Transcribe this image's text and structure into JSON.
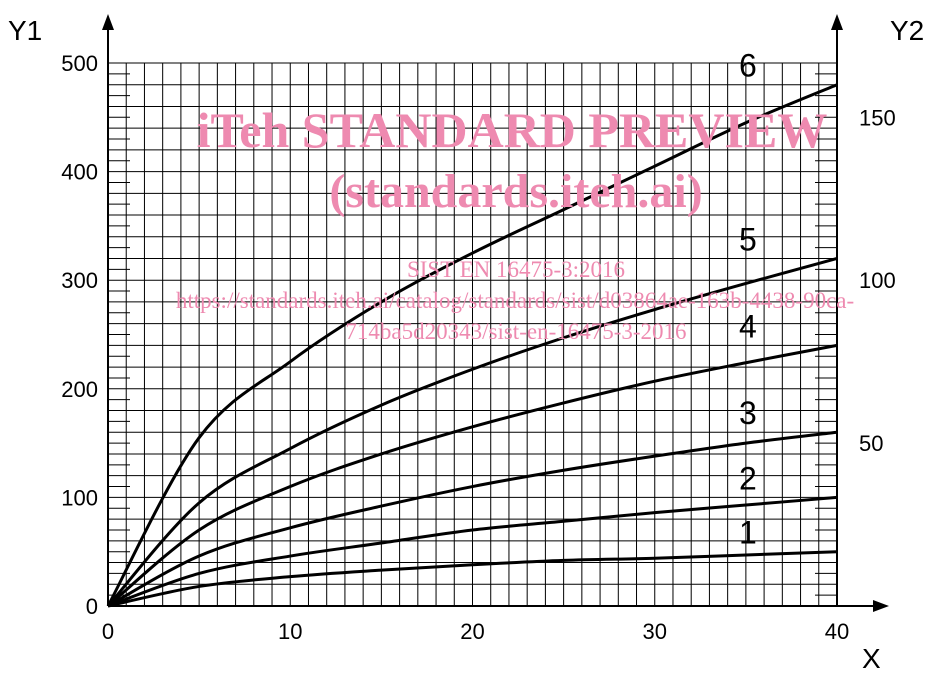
{
  "chart_data": {
    "type": "line",
    "title": "",
    "xlabel": "X",
    "ylabel_left": "Y1",
    "ylabel_right": "Y2",
    "xlim": [
      0,
      40
    ],
    "ylim_left": [
      0,
      500
    ],
    "ylim_right": [
      0,
      166.67
    ],
    "x_ticks": [
      0,
      10,
      20,
      30,
      40
    ],
    "y_left_ticks": [
      0,
      100,
      200,
      300,
      400,
      500
    ],
    "y_right_ticks": [
      50,
      100,
      150
    ],
    "grid": true,
    "series": [
      {
        "label": "1",
        "x": [
          0,
          5,
          10,
          15,
          20,
          25,
          30,
          35,
          40
        ],
        "values": [
          0,
          18,
          27,
          33,
          38,
          42,
          44,
          47,
          50
        ]
      },
      {
        "label": "2",
        "x": [
          0,
          5,
          10,
          15,
          20,
          25,
          30,
          35,
          40
        ],
        "values": [
          0,
          30,
          46,
          58,
          70,
          78,
          86,
          93,
          100
        ]
      },
      {
        "label": "3",
        "x": [
          0,
          5,
          10,
          15,
          20,
          25,
          30,
          35,
          40
        ],
        "values": [
          0,
          46,
          72,
          92,
          110,
          125,
          138,
          150,
          160
        ]
      },
      {
        "label": "4",
        "x": [
          0,
          5,
          10,
          15,
          20,
          25,
          30,
          35,
          40
        ],
        "values": [
          0,
          70,
          110,
          140,
          165,
          187,
          207,
          224,
          240
        ]
      },
      {
        "label": "5",
        "x": [
          0,
          5,
          10,
          15,
          20,
          25,
          30,
          35,
          40
        ],
        "values": [
          0,
          95,
          145,
          185,
          218,
          247,
          273,
          297,
          320
        ]
      },
      {
        "label": "6",
        "x": [
          0,
          5,
          10,
          15,
          20,
          25,
          30,
          35,
          40
        ],
        "values": [
          0,
          155,
          225,
          280,
          325,
          365,
          405,
          445,
          480
        ]
      }
    ]
  },
  "watermark": {
    "line1": "iTeh STANDARD PREVIEW",
    "line2": "(standards.iteh.ai)",
    "line3": "SIST EN 16475-3:2016",
    "line4": "https://standards.iteh.ai/catalog/standards/sist/d03864ae-163b-4438-90ca-",
    "line5": "714ba5d20343/sist-en-16475-3-2016"
  }
}
